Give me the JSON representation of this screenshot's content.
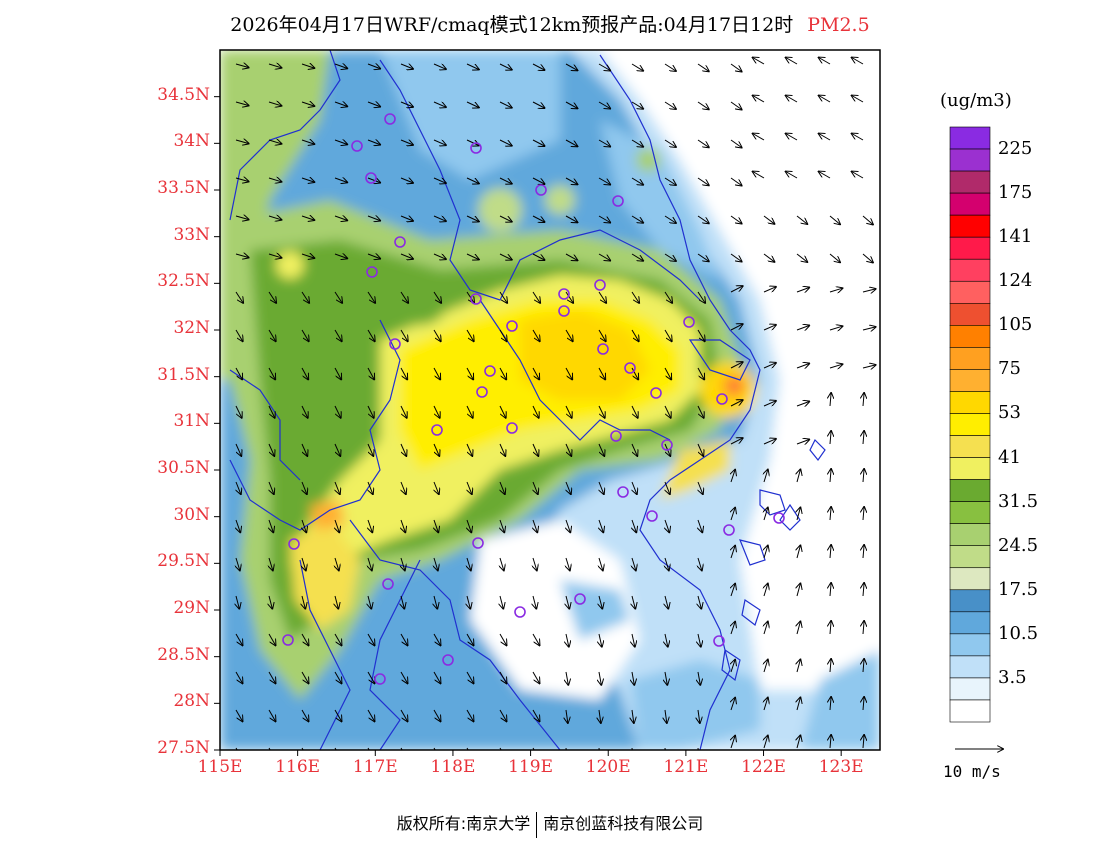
{
  "title": {
    "main": "2026年04月17日WRF/cmaq模式12km预报产品:04月17日12时",
    "product": "PM2.5"
  },
  "map": {
    "lat_labels": [
      "34.5N",
      "34N",
      "33.5N",
      "33N",
      "32.5N",
      "32N",
      "31.5N",
      "31N",
      "30.5N",
      "30N",
      "29.5N",
      "29N",
      "28.5N",
      "28N",
      "27.5N"
    ],
    "lon_labels": [
      "115E",
      "116E",
      "117E",
      "118E",
      "119E",
      "120E",
      "121E",
      "122E",
      "123E"
    ],
    "extent": {
      "lon_min": 115,
      "lon_max": 123.5,
      "lat_min": 27.5,
      "lat_max": 35.0
    },
    "label_color": "#e8333a",
    "station_color": "#8a2be2"
  },
  "legend": {
    "unit": "(ug/m3)",
    "colors": [
      "#8a2be2",
      "#9b30d0",
      "#b02a6a",
      "#d4006e",
      "#ff0000",
      "#ff1a4a",
      "#ff4060",
      "#ff6060",
      "#ee5030",
      "#ff8000",
      "#ffa020",
      "#ffb030",
      "#ffd800",
      "#ffee00",
      "#f5e050",
      "#f0f060",
      "#6aaa30",
      "#88c040",
      "#a8d070",
      "#c0dc88",
      "#dde8c0",
      "#4890c8",
      "#60a8dc",
      "#90c8ee",
      "#c0e0f8",
      "#e8f4fc",
      "#ffffff"
    ],
    "labels": [
      "225",
      "175",
      "141",
      "124",
      "105",
      "75",
      "53",
      "41",
      "31.5",
      "24.5",
      "17.5",
      "10.5",
      "3.5"
    ]
  },
  "vector_ref": {
    "label": "10 m/s"
  },
  "footer": {
    "copyright_prefix": "版权所有:",
    "org1": "南京大学",
    "org2": "南京创蓝科技有限公司"
  }
}
